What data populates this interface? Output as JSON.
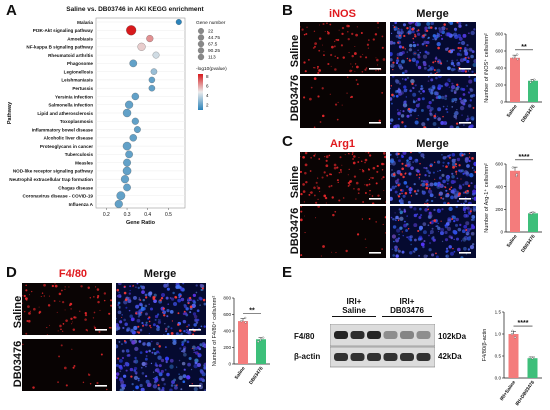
{
  "panels": {
    "A": {
      "letter": "A",
      "title": "Saline vs. DB03746 in AKI KEGG enrichment",
      "ylabel": "Pathway",
      "xlabel": "Gene Ratio",
      "x_ticks": [
        "0.2",
        "0.3",
        "0.4",
        "0.5"
      ],
      "legend_size_title": "Gene number",
      "legend_sizes": [
        "22",
        "44.75",
        "67.5",
        "90.25",
        "113"
      ],
      "legend_color_title": "-log10(pvalue)",
      "legend_color_ticks": [
        "8",
        "6",
        "4",
        "2"
      ],
      "colors": {
        "high": "#d7191c",
        "mid": "#f4f4f4",
        "low": "#2b83ba",
        "point_default": "#4aa3d6"
      }
    },
    "B": {
      "letter": "B",
      "col1": "iNOS",
      "col2": "Merge",
      "row1": "Saline",
      "row2": "DB03476",
      "ylabel": "Number of iNOS⁺ cells/mm²",
      "cats": [
        "Saline",
        "DB03476"
      ],
      "sig": "**",
      "ticks": [
        "0",
        "200",
        "400",
        "600",
        "800"
      ]
    },
    "C": {
      "letter": "C",
      "col1": "Arg1",
      "col2": "Merge",
      "row1": "Saline",
      "row2": "DB03476",
      "ylabel": "Number of Arg-1⁺ cells/mm²",
      "cats": [
        "Saline",
        "DB03476"
      ],
      "sig": "****",
      "ticks": [
        "0",
        "200",
        "400",
        "600"
      ]
    },
    "D": {
      "letter": "D",
      "col1": "F4/80",
      "col2": "Merge",
      "row1": "Saline",
      "row2": "DB03476",
      "ylabel": "Number of F4/80⁺ cells/mm²",
      "cats": [
        "Saline",
        "DB03476"
      ],
      "sig": "**",
      "ticks": [
        "0",
        "200",
        "400",
        "600",
        "800"
      ]
    },
    "E": {
      "letter": "E",
      "group1": "IRI+\nSaline",
      "group2": "IRI+\nDB03476",
      "band1": "F4/80",
      "band2": "β-actin",
      "kda1": "102kDa",
      "kda2": "42kDa",
      "ylabel": "F4/80/β-actin",
      "cats": [
        "IRI+Saline",
        "IRI+DB03476"
      ],
      "sig": "****",
      "ticks": [
        "0.0",
        "0.5",
        "1.0",
        "1.5"
      ]
    }
  },
  "chart_data": [
    {
      "type": "scatter",
      "title": "Saline vs. DB03746 in AKI KEGG enrichment",
      "xlabel": "Gene Ratio",
      "ylabel": "Pathway",
      "xlim": [
        0.15,
        0.58
      ],
      "categories": [
        "Malaria",
        "PI3K-Akt signaling pathway",
        "Amoebiasis",
        "NF-kappa B signaling pathway",
        "Rheumatoid arthritis",
        "Phagosome",
        "Legionellosis",
        "Leishmaniasis",
        "Pertussis",
        "Yersinia infection",
        "Salmonella infection",
        "Lipid and atherosclerosis",
        "Toxoplasmosis",
        "Inflammatory bowel disease",
        "Alcoholic liver disease",
        "Proteoglycans in cancer",
        "Tuberculosis",
        "Measles",
        "NOD-like receptor signaling pathway",
        "Neutrophil extracellular trap formation",
        "Chagas disease",
        "Coronavirus disease - COVID-19",
        "Influenza A"
      ],
      "series": [
        {
          "values": [
            0.55,
            0.32,
            0.41,
            0.37,
            0.44,
            0.33,
            0.43,
            0.42,
            0.42,
            0.34,
            0.31,
            0.3,
            0.34,
            0.35,
            0.33,
            0.3,
            0.31,
            0.3,
            0.3,
            0.29,
            0.3,
            0.27,
            0.26
          ],
          "sizes": [
            22,
            113,
            40,
            60,
            35,
            50,
            30,
            28,
            30,
            45,
            60,
            65,
            40,
            35,
            45,
            70,
            50,
            55,
            70,
            60,
            50,
            75,
            60
          ],
          "pvalue": [
            2,
            9,
            7,
            6,
            5,
            3,
            4,
            3,
            3,
            3,
            3,
            3,
            3,
            3,
            3,
            3,
            3,
            3,
            3,
            3,
            3,
            3,
            3
          ]
        }
      ]
    },
    {
      "type": "bar",
      "title": "",
      "ylabel": "Number of iNOS⁺ cells/mm²",
      "categories": [
        "Saline",
        "DB03476"
      ],
      "values": [
        520,
        250
      ],
      "ylim": [
        0,
        800
      ],
      "colors": [
        "#f47c7c",
        "#3dbf7a"
      ]
    },
    {
      "type": "bar",
      "title": "",
      "ylabel": "Number of Arg-1⁺ cells/mm²",
      "categories": [
        "Saline",
        "DB03476"
      ],
      "values": [
        540,
        165
      ],
      "ylim": [
        0,
        600
      ],
      "colors": [
        "#f47c7c",
        "#3dbf7a"
      ]
    },
    {
      "type": "bar",
      "title": "",
      "ylabel": "Number of F4/80⁺ cells/mm²",
      "categories": [
        "Saline",
        "DB03476"
      ],
      "values": [
        520,
        300
      ],
      "ylim": [
        0,
        800
      ],
      "colors": [
        "#f47c7c",
        "#3dbf7a"
      ]
    },
    {
      "type": "bar",
      "title": "",
      "ylabel": "F4/80/β-actin",
      "categories": [
        "IRI+Saline",
        "IRI+DB03476"
      ],
      "values": [
        1.0,
        0.45
      ],
      "ylim": [
        0,
        1.5
      ],
      "colors": [
        "#f47c7c",
        "#3dbf7a"
      ]
    }
  ]
}
